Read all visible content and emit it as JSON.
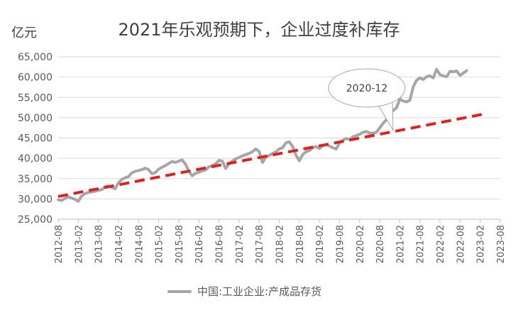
{
  "chart_data": {
    "type": "line",
    "title": "2021年乐观预期下，企业过度补库存",
    "unit_label": "亿元",
    "ylim": [
      25000,
      65000
    ],
    "yticks": [
      "25,000",
      "30,000",
      "35,000",
      "40,000",
      "45,000",
      "50,000",
      "55,000",
      "60,000",
      "65,000"
    ],
    "ytick_values": [
      25000,
      30000,
      35000,
      40000,
      45000,
      50000,
      55000,
      60000,
      65000
    ],
    "xticks": [
      "2012-08",
      "2013-02",
      "2013-08",
      "2014-02",
      "2014-08",
      "2015-02",
      "2015-08",
      "2016-02",
      "2016-08",
      "2017-02",
      "2017-08",
      "2018-02",
      "2018-08",
      "2019-02",
      "2019-08",
      "2020-02",
      "2020-08",
      "2021-02",
      "2021-08",
      "2022-02",
      "2022-08",
      "2023-02",
      "2023-08"
    ],
    "grid": true,
    "legend_position": "bottom",
    "series": [
      {
        "name": "中国:工业企业:产成品存货",
        "color": "#a6a6a6",
        "values": [
          29800,
          29600,
          30100,
          30500,
          30200,
          29900,
          29400,
          30700,
          31300,
          31600,
          31700,
          31900,
          32100,
          32300,
          33000,
          33200,
          32800,
          32500,
          34000,
          34800,
          35200,
          35500,
          36400,
          36800,
          37000,
          37200,
          37600,
          37200,
          36200,
          36500,
          37300,
          37800,
          38200,
          38700,
          39200,
          39000,
          39300,
          39600,
          38600,
          36800,
          35700,
          36300,
          36600,
          36900,
          37100,
          37900,
          38200,
          38600,
          39500,
          39300,
          37500,
          38600,
          39300,
          39900,
          40200,
          40600,
          40900,
          41200,
          41600,
          42300,
          41700,
          39000,
          40300,
          40700,
          41200,
          41600,
          42300,
          42600,
          43800,
          44100,
          42900,
          40800,
          39400,
          40900,
          41600,
          41900,
          42600,
          42900,
          42400,
          43100,
          43400,
          43000,
          42600,
          42300,
          43800,
          44400,
          44900,
          44600,
          45300,
          45600,
          45900,
          46400,
          46600,
          46200,
          46200,
          46400,
          47500,
          48600,
          49500,
          51000,
          51800,
          52400,
          54600,
          54100,
          53900,
          54300,
          57600,
          59200,
          59800,
          59400,
          60100,
          60300,
          59800,
          61900,
          60600,
          60300,
          60100,
          61400,
          61300,
          61500,
          60400,
          61000,
          61600
        ]
      }
    ],
    "trendline": {
      "style": "dashed",
      "color": "#e02020",
      "start_value": 30600,
      "end_value": 51000
    },
    "annotations": [
      {
        "text": "2020-12",
        "target_x": "2020-12",
        "target_value": 46200
      }
    ]
  }
}
